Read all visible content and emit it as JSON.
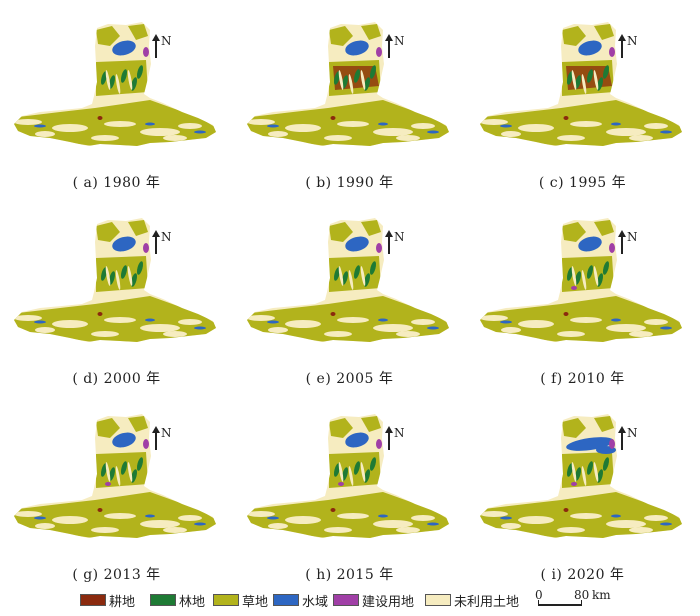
{
  "panels": [
    {
      "caption": "( a) 1980 年",
      "variant": 0
    },
    {
      "caption": "( b) 1990 年",
      "variant": 1
    },
    {
      "caption": "( c) 1995 年",
      "variant": 2
    },
    {
      "caption": "( d) 2000 年",
      "variant": 3
    },
    {
      "caption": "( e) 2005 年",
      "variant": 4
    },
    {
      "caption": "( f) 2010 年",
      "variant": 5
    },
    {
      "caption": "( g) 2013 年",
      "variant": 6
    },
    {
      "caption": "( h) 2015 年",
      "variant": 7
    },
    {
      "caption": "( i) 2020 年",
      "variant": 8
    }
  ],
  "north_label": "N",
  "legend": [
    {
      "label": "耕地",
      "color": "#8b2a0e"
    },
    {
      "label": "林地",
      "color": "#1e7a34"
    },
    {
      "label": "草地",
      "color": "#b2b31c"
    },
    {
      "label": "水域",
      "color": "#2d66c2"
    },
    {
      "label": "建设用地",
      "color": "#a03fa6"
    },
    {
      "label": "未利用土地",
      "color": "#f6ecc0"
    }
  ],
  "scale": {
    "zero": "0",
    "max": "80",
    "unit": "km"
  }
}
